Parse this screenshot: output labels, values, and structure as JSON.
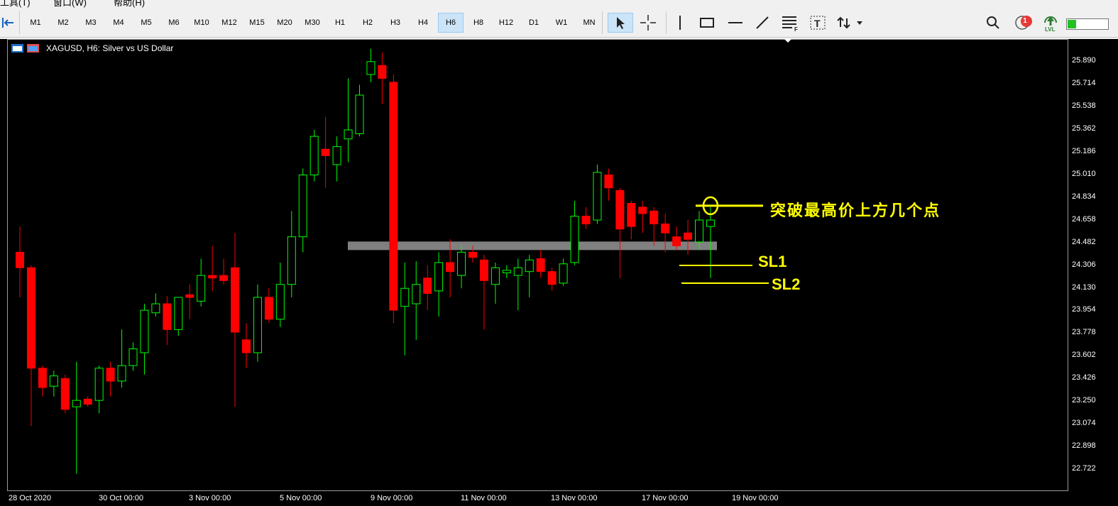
{
  "menu": {
    "tools": "工具(T)",
    "window": "窗口(W)",
    "help": "帮助(H)"
  },
  "timeframes": [
    "M1",
    "M2",
    "M3",
    "M4",
    "M5",
    "M6",
    "M10",
    "M12",
    "M15",
    "M20",
    "M30",
    "H1",
    "H2",
    "H3",
    "H4",
    "H6",
    "H8",
    "H12",
    "D1",
    "W1",
    "MN"
  ],
  "active_timeframe": "H6",
  "toolbar_right": {
    "notification_count": "1",
    "lvl_label": "LVL"
  },
  "chart": {
    "title": "XAGUSD, H6:  Silver vs US Dollar",
    "price_labels": [
      "25.890",
      "25.714",
      "25.538",
      "25.362",
      "25.186",
      "25.010",
      "24.834",
      "24.658",
      "24.482",
      "24.306",
      "24.130",
      "23.954",
      "23.778",
      "23.602",
      "23.426",
      "23.250",
      "23.074",
      "22.898",
      "22.722"
    ],
    "time_labels": [
      "28 Oct 2020",
      "30 Oct 00:00",
      "3 Nov 00:00",
      "5 Nov 00:00",
      "9 Nov 00:00",
      "11 Nov 00:00",
      "13 Nov 00:00",
      "17 Nov 00:00",
      "19 Nov 00:00"
    ],
    "up_color": "#00ff00",
    "down_color": "#ff0000",
    "zone_color": "#808080",
    "annotation_color": "#ffff00"
  },
  "annotations": {
    "breakout_text": "突破最高价上方几个点",
    "sl1": "SL1",
    "sl2": "SL2"
  },
  "chart_data": {
    "type": "candlestick",
    "symbol": "XAGUSD",
    "timeframe": "H6",
    "yrange": [
      22.6,
      26.05
    ],
    "zone_price": 24.45,
    "candles": [
      {
        "o": 24.4,
        "h": 24.6,
        "l": 24.05,
        "c": 24.28
      },
      {
        "o": 24.28,
        "h": 24.3,
        "l": 23.05,
        "c": 23.5
      },
      {
        "o": 23.5,
        "h": 23.52,
        "l": 23.28,
        "c": 23.35
      },
      {
        "o": 23.36,
        "h": 23.48,
        "l": 23.28,
        "c": 23.44
      },
      {
        "o": 23.42,
        "h": 23.45,
        "l": 23.15,
        "c": 23.18
      },
      {
        "o": 23.2,
        "h": 23.55,
        "l": 22.68,
        "c": 23.25
      },
      {
        "o": 23.26,
        "h": 23.28,
        "l": 23.2,
        "c": 23.22
      },
      {
        "o": 23.25,
        "h": 23.52,
        "l": 23.15,
        "c": 23.5
      },
      {
        "o": 23.5,
        "h": 23.55,
        "l": 23.28,
        "c": 23.4
      },
      {
        "o": 23.4,
        "h": 23.8,
        "l": 23.35,
        "c": 23.52
      },
      {
        "o": 23.52,
        "h": 23.7,
        "l": 23.48,
        "c": 23.65
      },
      {
        "o": 23.62,
        "h": 24.0,
        "l": 23.45,
        "c": 23.95
      },
      {
        "o": 23.93,
        "h": 24.08,
        "l": 23.9,
        "c": 24.0
      },
      {
        "o": 24.0,
        "h": 24.06,
        "l": 23.68,
        "c": 23.8
      },
      {
        "o": 23.8,
        "h": 24.05,
        "l": 23.75,
        "c": 24.05
      },
      {
        "o": 24.07,
        "h": 24.15,
        "l": 23.88,
        "c": 24.05
      },
      {
        "o": 24.02,
        "h": 24.35,
        "l": 23.98,
        "c": 24.22
      },
      {
        "o": 24.22,
        "h": 24.45,
        "l": 24.1,
        "c": 24.2
      },
      {
        "o": 24.22,
        "h": 24.35,
        "l": 24.15,
        "c": 24.18
      },
      {
        "o": 24.28,
        "h": 24.55,
        "l": 23.2,
        "c": 23.78
      },
      {
        "o": 23.72,
        "h": 23.85,
        "l": 23.5,
        "c": 23.62
      },
      {
        "o": 23.62,
        "h": 24.15,
        "l": 23.55,
        "c": 24.05
      },
      {
        "o": 24.05,
        "h": 24.12,
        "l": 23.85,
        "c": 23.88
      },
      {
        "o": 23.88,
        "h": 24.32,
        "l": 23.82,
        "c": 24.15
      },
      {
        "o": 24.15,
        "h": 24.72,
        "l": 24.05,
        "c": 24.52
      },
      {
        "o": 24.52,
        "h": 25.05,
        "l": 24.4,
        "c": 25.0
      },
      {
        "o": 25.0,
        "h": 25.35,
        "l": 24.95,
        "c": 25.3
      },
      {
        "o": 25.2,
        "h": 25.45,
        "l": 24.9,
        "c": 25.15
      },
      {
        "o": 25.08,
        "h": 25.3,
        "l": 24.95,
        "c": 25.22
      },
      {
        "o": 25.28,
        "h": 25.75,
        "l": 25.1,
        "c": 25.35
      },
      {
        "o": 25.32,
        "h": 25.7,
        "l": 25.3,
        "c": 25.62
      },
      {
        "o": 25.78,
        "h": 25.98,
        "l": 25.72,
        "c": 25.88
      },
      {
        "o": 25.85,
        "h": 25.95,
        "l": 25.55,
        "c": 25.75
      },
      {
        "o": 25.72,
        "h": 25.78,
        "l": 23.85,
        "c": 23.95
      },
      {
        "o": 23.98,
        "h": 24.32,
        "l": 23.6,
        "c": 24.12
      },
      {
        "o": 24.0,
        "h": 24.33,
        "l": 23.72,
        "c": 24.15
      },
      {
        "o": 24.2,
        "h": 24.3,
        "l": 23.95,
        "c": 24.08
      },
      {
        "o": 24.1,
        "h": 24.4,
        "l": 23.9,
        "c": 24.32
      },
      {
        "o": 24.32,
        "h": 24.5,
        "l": 24.05,
        "c": 24.25
      },
      {
        "o": 24.22,
        "h": 24.45,
        "l": 24.12,
        "c": 24.4
      },
      {
        "o": 24.4,
        "h": 24.45,
        "l": 24.32,
        "c": 24.36
      },
      {
        "o": 24.34,
        "h": 24.38,
        "l": 23.8,
        "c": 24.18
      },
      {
        "o": 24.15,
        "h": 24.32,
        "l": 24.0,
        "c": 24.28
      },
      {
        "o": 24.24,
        "h": 24.3,
        "l": 24.2,
        "c": 24.26
      },
      {
        "o": 24.22,
        "h": 24.35,
        "l": 23.95,
        "c": 24.28
      },
      {
        "o": 24.25,
        "h": 24.38,
        "l": 24.05,
        "c": 24.34
      },
      {
        "o": 24.35,
        "h": 24.42,
        "l": 24.2,
        "c": 24.25
      },
      {
        "o": 24.25,
        "h": 24.28,
        "l": 24.1,
        "c": 24.15
      },
      {
        "o": 24.16,
        "h": 24.35,
        "l": 24.14,
        "c": 24.31
      },
      {
        "o": 24.32,
        "h": 24.8,
        "l": 24.3,
        "c": 24.68
      },
      {
        "o": 24.68,
        "h": 24.75,
        "l": 24.58,
        "c": 24.62
      },
      {
        "o": 24.65,
        "h": 25.08,
        "l": 24.62,
        "c": 25.02
      },
      {
        "o": 25.0,
        "h": 25.05,
        "l": 24.8,
        "c": 24.9
      },
      {
        "o": 24.88,
        "h": 24.9,
        "l": 24.2,
        "c": 24.58
      },
      {
        "o": 24.78,
        "h": 24.8,
        "l": 24.5,
        "c": 24.6
      },
      {
        "o": 24.75,
        "h": 24.8,
        "l": 24.55,
        "c": 24.7
      },
      {
        "o": 24.72,
        "h": 24.75,
        "l": 24.45,
        "c": 24.62
      },
      {
        "o": 24.62,
        "h": 24.7,
        "l": 24.4,
        "c": 24.55
      },
      {
        "o": 24.52,
        "h": 24.6,
        "l": 24.42,
        "c": 24.45
      },
      {
        "o": 24.55,
        "h": 24.65,
        "l": 24.38,
        "c": 24.5
      },
      {
        "o": 24.48,
        "h": 24.72,
        "l": 24.42,
        "c": 24.65
      },
      {
        "o": 24.6,
        "h": 24.75,
        "l": 24.2,
        "c": 24.65
      }
    ]
  }
}
